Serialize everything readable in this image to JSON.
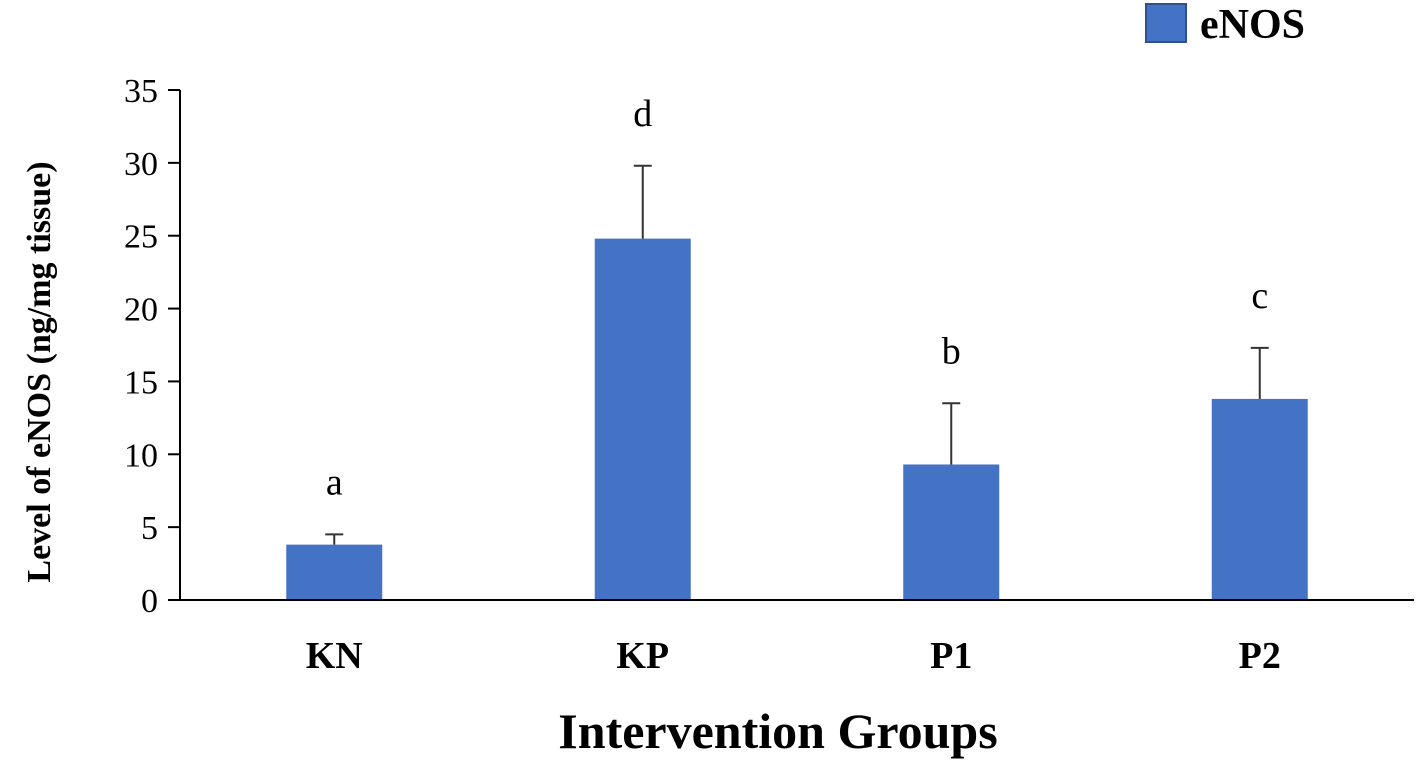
{
  "chart_data": {
    "type": "bar",
    "categories": [
      "KN",
      "KP",
      "P1",
      "P2"
    ],
    "series": [
      {
        "name": "eNOS",
        "values": [
          3.8,
          24.8,
          9.3,
          13.8
        ],
        "error": [
          0.7,
          5.0,
          4.2,
          3.5
        ],
        "color": "#4472c4"
      }
    ],
    "significance_labels": [
      "a",
      "d",
      "b",
      "c"
    ],
    "title": "",
    "xlabel": "Intervention Groups",
    "ylabel": "Level of  eNOS (ng/mg tissue)",
    "ylim": [
      0,
      35
    ],
    "yticks": [
      0,
      5,
      10,
      15,
      20,
      25,
      30,
      35
    ],
    "grid": false,
    "legend": {
      "position": "top-right",
      "entries": [
        "eNOS"
      ]
    }
  }
}
